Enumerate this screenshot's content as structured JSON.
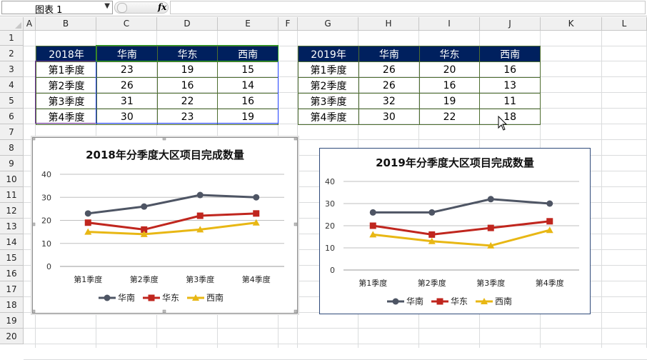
{
  "formula_bar": {
    "name_box": "图表 1",
    "fx_label": "fx",
    "formula": ""
  },
  "columns": [
    "A",
    "B",
    "C",
    "D",
    "E",
    "F",
    "G",
    "H",
    "I",
    "J",
    "K",
    "L"
  ],
  "rows": [
    "1",
    "2",
    "3",
    "4",
    "5",
    "6",
    "7",
    "8",
    "9",
    "10",
    "11",
    "12",
    "13",
    "14",
    "15",
    "16",
    "17",
    "18",
    "19",
    "20"
  ],
  "table2018": {
    "header": [
      "2018年",
      "华南",
      "华东",
      "西南"
    ],
    "rows": [
      [
        "第1季度",
        "23",
        "19",
        "15"
      ],
      [
        "第2季度",
        "26",
        "16",
        "14"
      ],
      [
        "第3季度",
        "31",
        "22",
        "16"
      ],
      [
        "第4季度",
        "30",
        "23",
        "19"
      ]
    ]
  },
  "table2019": {
    "header": [
      "2019年",
      "华南",
      "华东",
      "西南"
    ],
    "rows": [
      [
        "第1季度",
        "26",
        "20",
        "16"
      ],
      [
        "第2季度",
        "26",
        "16",
        "13"
      ],
      [
        "第3季度",
        "32",
        "19",
        "11"
      ],
      [
        "第4季度",
        "30",
        "22",
        "18"
      ]
    ]
  },
  "colors": {
    "south": "#4e5564",
    "east": "#c0261e",
    "southwest": "#e8b714",
    "header_bg": "#00205e"
  },
  "chart_data": [
    {
      "type": "line",
      "title": "2018年分季度大区项目完成数量",
      "categories": [
        "第1季度",
        "第2季度",
        "第3季度",
        "第4季度"
      ],
      "yticks": [
        "0",
        "10",
        "20",
        "30",
        "40"
      ],
      "ylim": [
        0,
        40
      ],
      "grid": true,
      "legend": "bottom",
      "series": [
        {
          "name": "华南",
          "values": [
            23,
            26,
            31,
            30
          ],
          "marker": "circle"
        },
        {
          "name": "华东",
          "values": [
            19,
            16,
            22,
            23
          ],
          "marker": "square"
        },
        {
          "name": "西南",
          "values": [
            15,
            14,
            16,
            19
          ],
          "marker": "triangle"
        }
      ]
    },
    {
      "type": "line",
      "title": "2019年分季度大区项目完成数量",
      "categories": [
        "第1季度",
        "第2季度",
        "第3季度",
        "第4季度"
      ],
      "yticks": [
        "0",
        "10",
        "20",
        "30",
        "40"
      ],
      "ylim": [
        0,
        40
      ],
      "grid": true,
      "legend": "bottom",
      "series": [
        {
          "name": "华南",
          "values": [
            26,
            26,
            32,
            30
          ],
          "marker": "circle"
        },
        {
          "name": "华东",
          "values": [
            20,
            16,
            19,
            22
          ],
          "marker": "square"
        },
        {
          "name": "西南",
          "values": [
            16,
            13,
            11,
            18
          ],
          "marker": "triangle"
        }
      ]
    }
  ]
}
